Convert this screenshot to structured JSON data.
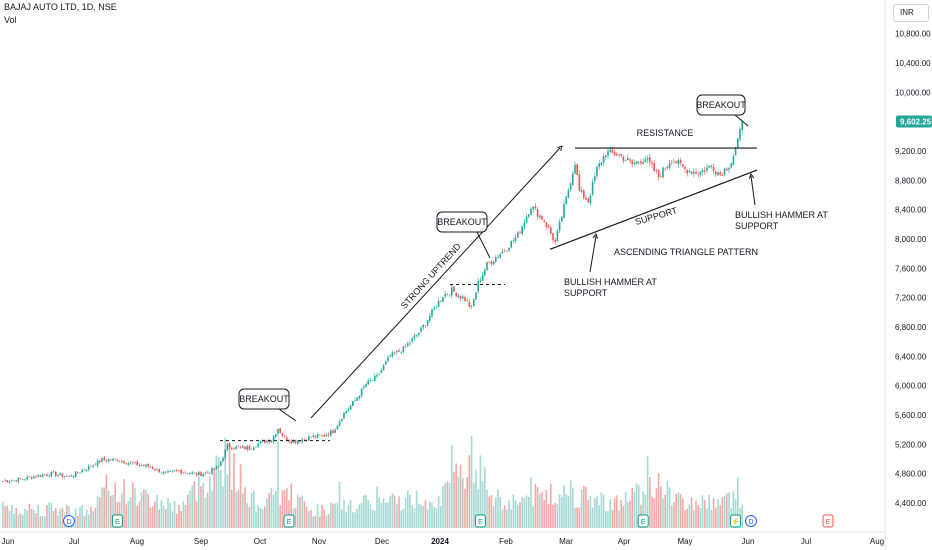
{
  "header": {
    "symbol_line": "BAJAJ AUTO LTD, 1D, NSE",
    "volume_label": "Vol"
  },
  "price_unit": "INR",
  "chart_data": {
    "type": "candlestick",
    "y_ticks": [
      "10,800.00",
      "10,400.00",
      "10,000.00",
      "9,200.00",
      "8,800.00",
      "8,400.00",
      "8,000.00",
      "7,600.00",
      "7,200.00",
      "6,800.00",
      "6,400.00",
      "6,000.00",
      "5,600.00",
      "5,200.00",
      "4,800.00",
      "4,400.00"
    ],
    "y_tick_values": [
      10800,
      10400,
      10000,
      9200,
      8800,
      8400,
      8000,
      7600,
      7200,
      6800,
      6400,
      6000,
      5600,
      5200,
      4800,
      4400
    ],
    "ylim": [
      4280,
      11000
    ],
    "x_ticks": [
      "Jun",
      "Jul",
      "Aug",
      "Sep",
      "Oct",
      "Nov",
      "Dec",
      "2024",
      "Feb",
      "Mar",
      "Apr",
      "May",
      "Jun",
      "Jul",
      "Aug"
    ],
    "last_price": "9,602.25",
    "last_price_value": 9602.25,
    "anchor_closes": [
      [
        0,
        4700
      ],
      [
        8,
        4720
      ],
      [
        15,
        4770
      ],
      [
        22,
        4800
      ],
      [
        30,
        4760
      ],
      [
        38,
        4870
      ],
      [
        45,
        4990
      ],
      [
        52,
        4990
      ],
      [
        58,
        4940
      ],
      [
        66,
        4900
      ],
      [
        74,
        4800
      ],
      [
        80,
        4840
      ],
      [
        88,
        4790
      ],
      [
        93,
        4810
      ],
      [
        98,
        4900
      ],
      [
        102,
        5180
      ],
      [
        105,
        5160
      ],
      [
        112,
        5150
      ],
      [
        117,
        5220
      ],
      [
        120,
        5250
      ],
      [
        122,
        5260
      ],
      [
        125,
        5420
      ],
      [
        128,
        5280
      ],
      [
        132,
        5240
      ],
      [
        140,
        5300
      ],
      [
        146,
        5320
      ],
      [
        150,
        5380
      ],
      [
        155,
        5620
      ],
      [
        160,
        5800
      ],
      [
        165,
        6020
      ],
      [
        170,
        6120
      ],
      [
        176,
        6400
      ],
      [
        182,
        6500
      ],
      [
        190,
        6760
      ],
      [
        196,
        7050
      ],
      [
        200,
        7230
      ],
      [
        204,
        7300
      ],
      [
        210,
        7180
      ],
      [
        213,
        7050
      ],
      [
        216,
        7400
      ],
      [
        220,
        7650
      ],
      [
        228,
        7850
      ],
      [
        234,
        8050
      ],
      [
        240,
        8450
      ],
      [
        246,
        8250
      ],
      [
        251,
        7950
      ],
      [
        256,
        8550
      ],
      [
        260,
        9050
      ],
      [
        262,
        8650
      ],
      [
        266,
        8520
      ],
      [
        270,
        8950
      ],
      [
        274,
        9180
      ],
      [
        280,
        9150
      ],
      [
        286,
        9020
      ],
      [
        292,
        9100
      ],
      [
        298,
        8850
      ],
      [
        304,
        9100
      ],
      [
        310,
        8950
      ],
      [
        316,
        8900
      ],
      [
        322,
        9000
      ],
      [
        326,
        8880
      ],
      [
        331,
        9050
      ],
      [
        334,
        9320
      ],
      [
        336,
        9602
      ]
    ],
    "volume_shape": [
      [
        0,
        0.3
      ],
      [
        40,
        0.25
      ],
      [
        48,
        0.6
      ],
      [
        80,
        0.3
      ],
      [
        101,
        1.0
      ],
      [
        115,
        0.35
      ],
      [
        130,
        0.5
      ],
      [
        140,
        0.25
      ],
      [
        166,
        0.35
      ],
      [
        200,
        0.45
      ],
      [
        213,
        1.0
      ],
      [
        225,
        0.35
      ],
      [
        240,
        0.45
      ],
      [
        255,
        0.5
      ],
      [
        280,
        0.35
      ],
      [
        295,
        0.65
      ],
      [
        310,
        0.35
      ],
      [
        330,
        0.4
      ],
      [
        336,
        0.45
      ]
    ],
    "volume_spikes": [
      [
        101,
        0.98
      ],
      [
        125,
        0.95
      ],
      [
        153,
        0.5
      ],
      [
        170,
        0.45
      ],
      [
        204,
        0.9
      ],
      [
        213,
        1.0
      ],
      [
        225,
        0.42
      ],
      [
        240,
        0.55
      ],
      [
        249,
        0.48
      ],
      [
        258,
        0.52
      ],
      [
        293,
        0.78
      ],
      [
        299,
        0.45
      ],
      [
        334,
        0.55
      ]
    ],
    "events": [
      {
        "bar": 30,
        "letter": "D"
      },
      {
        "bar": 52,
        "letter": "E"
      },
      {
        "bar": 130,
        "letter": "E"
      },
      {
        "bar": 217,
        "letter": "E"
      },
      {
        "bar": 291,
        "letter": "E"
      },
      {
        "bar": 333,
        "letter": "⚡"
      },
      {
        "bar": 340,
        "letter": "D"
      },
      {
        "bar": 375,
        "letter": "E"
      }
    ],
    "annotations": [
      {
        "kind": "callout",
        "text": "BREAKOUT",
        "bar": 116,
        "price": 5620
      },
      {
        "kind": "callout",
        "text": "BREAKOUT",
        "bar": 211,
        "price": 8080
      },
      {
        "kind": "callout",
        "text": "BREAKOUT",
        "bar": 326,
        "price": 9850
      },
      {
        "kind": "label",
        "text": "STRONG UPTREND"
      },
      {
        "kind": "label",
        "text": "RESISTANCE"
      },
      {
        "kind": "label",
        "text": "SUPPORT"
      },
      {
        "kind": "label",
        "text": "ASCENDING TRIANGLE PATTERN"
      },
      {
        "kind": "label",
        "text": "BULLISH HAMMER AT\nSUPPORT"
      },
      {
        "kind": "label",
        "text": "BULLISH HAMMER AT\nSUPPORT"
      }
    ],
    "colors": {
      "up": "#26a69a",
      "down": "#ef5350",
      "up_volume": "#a3d9d2",
      "down_volume": "#f4a8a6",
      "line": "#131722",
      "last_price_bg": "#26a69a"
    }
  }
}
